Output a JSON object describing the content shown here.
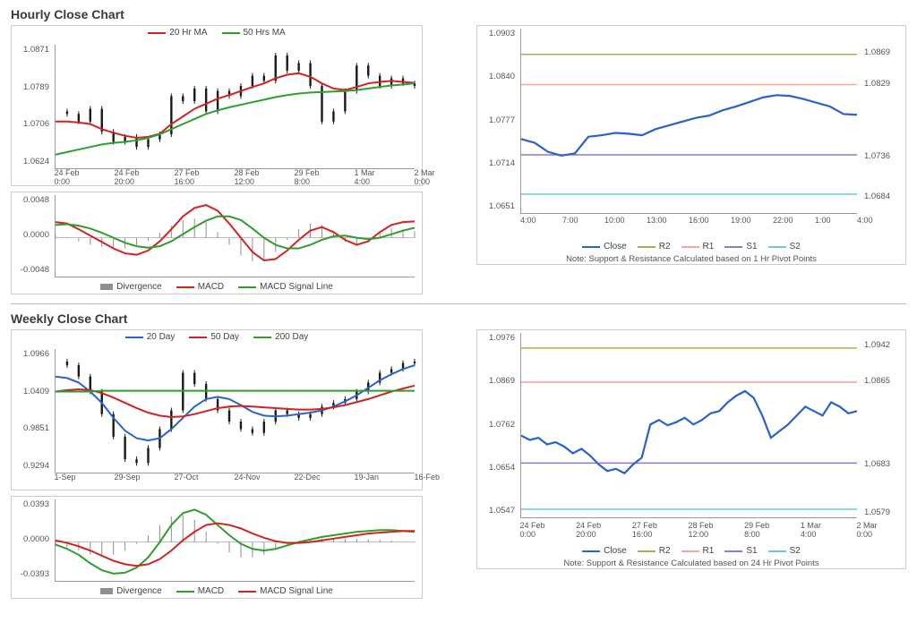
{
  "hourly": {
    "title": "Hourly Close Chart",
    "price": {
      "legend": [
        {
          "label": "20 Hr MA",
          "color": "#d22323"
        },
        {
          "label": "50 Hrs MA",
          "color": "#2f9e2f"
        }
      ],
      "yticks": [
        "1.0871",
        "1.0789",
        "1.0706",
        "1.0624"
      ],
      "ylim": [
        1.0624,
        1.0871
      ],
      "xticks": [
        "24 Feb\n0:00",
        "24 Feb\n20:00",
        "27 Feb\n16:00",
        "28 Feb\n12:00",
        "29 Feb\n8:00",
        "1 Mar\n4:00",
        "2 Mar\n0:00"
      ],
      "close_series": [
        1.074,
        1.0735,
        1.072,
        1.0745,
        1.07,
        1.068,
        1.069,
        1.067,
        1.0685,
        1.0695,
        1.077,
        1.076,
        1.0785,
        1.074,
        1.078,
        1.077,
        1.079,
        1.081,
        1.08,
        1.085,
        1.082,
        1.0835,
        1.079,
        1.072,
        1.074,
        1.078,
        1.083,
        1.081,
        1.079,
        1.0805,
        1.0795,
        1.079
      ],
      "ma20": [
        1.072,
        1.072,
        1.0718,
        1.0715,
        1.0705,
        1.0698,
        1.0692,
        1.0688,
        1.069,
        1.0696,
        1.0715,
        1.073,
        1.0745,
        1.0755,
        1.0765,
        1.0772,
        1.078,
        1.0788,
        1.0795,
        1.0805,
        1.0812,
        1.0815,
        1.0808,
        1.0795,
        1.0785,
        1.0782,
        1.0788,
        1.0795,
        1.0798,
        1.08,
        1.0798,
        1.0796
      ],
      "ma50": [
        1.0655,
        1.066,
        1.0665,
        1.067,
        1.0675,
        1.0678,
        1.068,
        1.0683,
        1.0688,
        1.0695,
        1.0705,
        1.0715,
        1.0725,
        1.0735,
        1.0742,
        1.0748,
        1.0753,
        1.0758,
        1.0763,
        1.0768,
        1.0772,
        1.0775,
        1.0777,
        1.0778,
        1.0779,
        1.078,
        1.0782,
        1.0785,
        1.0788,
        1.0791,
        1.0793,
        1.0795
      ],
      "ma20_color": "#d22323",
      "ma50_color": "#2f9e2f",
      "bar_color": "#1a1a1a"
    },
    "macd": {
      "legend": [
        {
          "label": "Divergence",
          "color": "#8f8f8f",
          "type": "bar"
        },
        {
          "label": "MACD",
          "color": "#d22323",
          "type": "line"
        },
        {
          "label": "MACD Signal Line",
          "color": "#2f9e2f",
          "type": "line"
        }
      ],
      "yticks": [
        "0.0048",
        "0.0000",
        "-0.0048"
      ],
      "ylim": [
        -0.006,
        0.006
      ],
      "macd_series": [
        0.0022,
        0.002,
        0.0012,
        0.0003,
        -0.0006,
        -0.0015,
        -0.0022,
        -0.0024,
        -0.0018,
        -0.0005,
        0.0012,
        0.003,
        0.0042,
        0.0046,
        0.0038,
        0.002,
        0.0,
        -0.002,
        -0.0032,
        -0.003,
        -0.0018,
        -0.0003,
        0.001,
        0.0015,
        0.0008,
        -0.0003,
        -0.001,
        -0.0005,
        0.0008,
        0.0018,
        0.0022,
        0.0023
      ],
      "signal_series": [
        0.0018,
        0.0019,
        0.0017,
        0.0013,
        0.0007,
        0.0,
        -0.0007,
        -0.0012,
        -0.0014,
        -0.0012,
        -0.0005,
        0.0005,
        0.0015,
        0.0024,
        0.003,
        0.003,
        0.0025,
        0.0013,
        0.0,
        -0.001,
        -0.0015,
        -0.0015,
        -0.001,
        -0.0003,
        0.0002,
        0.0003,
        0.0,
        -0.0002,
        0.0,
        0.0005,
        0.001,
        0.0014
      ],
      "div_series": [
        0.0004,
        0.0001,
        -0.0005,
        -0.001,
        -0.0013,
        -0.0015,
        -0.0015,
        -0.0012,
        -0.0004,
        0.0007,
        0.0017,
        0.0025,
        0.0027,
        0.0022,
        0.0008,
        -0.001,
        -0.0025,
        -0.0033,
        -0.0032,
        -0.002,
        -0.0003,
        0.0012,
        0.002,
        0.0018,
        0.0006,
        -0.0006,
        -0.001,
        -0.0003,
        0.0008,
        0.0013,
        0.0012,
        0.0009
      ],
      "macd_color": "#d22323",
      "signal_color": "#2f9e2f",
      "div_color": "#8f8f8f"
    },
    "pivot": {
      "yticks": [
        "1.0903",
        "1.0840",
        "1.0777",
        "1.0714",
        "1.0651"
      ],
      "ylim": [
        1.0651,
        1.0903
      ],
      "xticks": [
        "4:00",
        "7:00",
        "10:00",
        "13:00",
        "16:00",
        "19:00",
        "22:00",
        "1:00",
        "4:00"
      ],
      "close_series": [
        1.0757,
        1.0752,
        1.074,
        1.0735,
        1.0738,
        1.076,
        1.0762,
        1.0765,
        1.0764,
        1.0762,
        1.077,
        1.0775,
        1.078,
        1.0785,
        1.0788,
        1.0795,
        1.08,
        1.0806,
        1.0812,
        1.0815,
        1.0814,
        1.081,
        1.0805,
        1.08,
        1.079,
        1.0789
      ],
      "close_color": "#2a63c9",
      "levels": [
        {
          "name": "R2",
          "value": 1.0869,
          "color": "#98b84a"
        },
        {
          "name": "R1",
          "value": 1.0829,
          "color": "#f4a7a2"
        },
        {
          "name": "S1",
          "value": 1.0736,
          "color": "#9477c7"
        },
        {
          "name": "S2",
          "value": 1.0684,
          "color": "#67c9e0"
        }
      ],
      "legend": [
        {
          "label": "Close",
          "color": "#2a63c9"
        },
        {
          "label": "R2",
          "color": "#98b84a"
        },
        {
          "label": "R1",
          "color": "#f4a7a2"
        },
        {
          "label": "S1",
          "color": "#9477c7"
        },
        {
          "label": "S2",
          "color": "#67c9e0"
        }
      ],
      "note": "Note: Support & Resistance Calculated based on 1 Hr Pivot Points"
    }
  },
  "weekly": {
    "title": "Weekly Close Chart",
    "price": {
      "legend": [
        {
          "label": "20 Day",
          "color": "#2a63c9"
        },
        {
          "label": "50 Day",
          "color": "#d22323"
        },
        {
          "label": "200 Day",
          "color": "#2f9e2f"
        }
      ],
      "yticks": [
        "1.0966",
        "1.0409",
        "0.9851",
        "0.9294"
      ],
      "ylim": [
        0.9294,
        1.0966
      ],
      "xticks": [
        "1-Sep",
        "29-Sep",
        "27-Oct",
        "24-Nov",
        "22-Dec",
        "19-Jan",
        "16-Feb"
      ],
      "close_series": [
        1.08,
        1.075,
        1.06,
        1.04,
        1.01,
        0.98,
        0.95,
        0.945,
        0.965,
        0.99,
        1.015,
        1.065,
        1.05,
        1.03,
        1.015,
        1.0,
        0.99,
        0.985,
        1.0,
        1.015,
        1.01,
        1.005,
        1.01,
        1.02,
        1.025,
        1.03,
        1.04,
        1.052,
        1.065,
        1.07,
        1.078,
        1.08
      ],
      "ma20": [
        1.06,
        1.058,
        1.052,
        1.04,
        1.025,
        1.005,
        0.988,
        0.978,
        0.975,
        0.978,
        0.99,
        1.005,
        1.02,
        1.03,
        1.033,
        1.03,
        1.022,
        1.013,
        1.008,
        1.007,
        1.008,
        1.01,
        1.012,
        1.015,
        1.02,
        1.027,
        1.035,
        1.045,
        1.055,
        1.063,
        1.07,
        1.075
      ],
      "ma50": [
        1.04,
        1.042,
        1.043,
        1.042,
        1.038,
        1.032,
        1.025,
        1.018,
        1.012,
        1.008,
        1.006,
        1.007,
        1.01,
        1.014,
        1.018,
        1.02,
        1.021,
        1.02,
        1.019,
        1.018,
        1.017,
        1.016,
        1.016,
        1.017,
        1.019,
        1.022,
        1.026,
        1.03,
        1.035,
        1.04,
        1.044,
        1.048
      ],
      "ma200": [
        1.04,
        1.04,
        1.04,
        1.04,
        1.041,
        1.041,
        1.041,
        1.041,
        1.041,
        1.041,
        1.041,
        1.041,
        1.041,
        1.041,
        1.041,
        1.041,
        1.041,
        1.041,
        1.041,
        1.041,
        1.041,
        1.041,
        1.041,
        1.041,
        1.041,
        1.041,
        1.041,
        1.041,
        1.041,
        1.041,
        1.041,
        1.041
      ],
      "ma20_color": "#2a63c9",
      "ma50_color": "#d22323",
      "ma200_color": "#2f9e2f",
      "bar_color": "#1a1a1a"
    },
    "macd": {
      "legend": [
        {
          "label": "Divergence",
          "color": "#8f8f8f",
          "type": "bar"
        },
        {
          "label": "MACD",
          "color": "#2f9e2f",
          "type": "line"
        },
        {
          "label": "MACD Signal Line",
          "color": "#d22323",
          "type": "line"
        }
      ],
      "yticks": [
        "0.0393",
        "0.0000",
        "-0.0393"
      ],
      "ylim": [
        -0.05,
        0.05
      ],
      "macd_series": [
        -0.003,
        -0.008,
        -0.015,
        -0.025,
        -0.033,
        -0.037,
        -0.036,
        -0.03,
        -0.018,
        0.0,
        0.02,
        0.034,
        0.038,
        0.032,
        0.02,
        0.008,
        -0.002,
        -0.008,
        -0.01,
        -0.008,
        -0.004,
        0.0,
        0.003,
        0.006,
        0.008,
        0.01,
        0.012,
        0.013,
        0.014,
        0.014,
        0.013,
        0.012
      ],
      "signal_series": [
        0.002,
        -0.001,
        -0.005,
        -0.01,
        -0.016,
        -0.022,
        -0.026,
        -0.028,
        -0.026,
        -0.02,
        -0.01,
        0.002,
        0.012,
        0.02,
        0.022,
        0.02,
        0.016,
        0.01,
        0.005,
        0.001,
        -0.001,
        -0.001,
        0.0,
        0.002,
        0.004,
        0.006,
        0.008,
        0.01,
        0.011,
        0.012,
        0.013,
        0.013
      ],
      "div_series": [
        -0.005,
        -0.007,
        -0.01,
        -0.015,
        -0.017,
        -0.015,
        -0.01,
        -0.002,
        0.008,
        0.02,
        0.03,
        0.032,
        0.026,
        0.012,
        -0.002,
        -0.012,
        -0.018,
        -0.018,
        -0.015,
        -0.009,
        -0.003,
        0.001,
        0.003,
        0.004,
        0.004,
        0.004,
        0.004,
        0.003,
        0.003,
        0.002,
        0.0,
        -0.001
      ],
      "macd_color": "#2f9e2f",
      "signal_color": "#d22323",
      "div_color": "#8f8f8f"
    },
    "pivot": {
      "yticks": [
        "1.0976",
        "1.0869",
        "1.0762",
        "1.0654",
        "1.0547"
      ],
      "ylim": [
        1.0547,
        1.0976
      ],
      "xticks": [
        "24 Feb\n0:00",
        "24 Feb\n20:00",
        "27 Feb\n16:00",
        "28 Feb\n12:00",
        "29 Feb\n8:00",
        "1 Mar\n4:00",
        "2 Mar\n0:00"
      ],
      "close_series": [
        1.0745,
        1.0735,
        1.074,
        1.0725,
        1.073,
        1.072,
        1.0705,
        1.0715,
        1.07,
        1.068,
        1.0665,
        1.067,
        1.066,
        1.068,
        1.0695,
        1.077,
        1.078,
        1.0768,
        1.0775,
        1.0785,
        1.077,
        1.078,
        1.0795,
        1.08,
        1.082,
        1.0835,
        1.0845,
        1.083,
        1.079,
        1.074,
        1.0755,
        1.077,
        1.079,
        1.081,
        1.08,
        1.079,
        1.082,
        1.081,
        1.0795,
        1.08
      ],
      "close_color": "#2a63c9",
      "levels": [
        {
          "name": "R2",
          "value": 1.0942,
          "color": "#98b84a"
        },
        {
          "name": "R1",
          "value": 1.0865,
          "color": "#f4a7a2"
        },
        {
          "name": "S1",
          "value": 1.0683,
          "color": "#9477c7"
        },
        {
          "name": "S2",
          "value": 1.0579,
          "color": "#67c9e0"
        }
      ],
      "legend": [
        {
          "label": "Close",
          "color": "#2a63c9"
        },
        {
          "label": "R2",
          "color": "#98b84a"
        },
        {
          "label": "R1",
          "color": "#f4a7a2"
        },
        {
          "label": "S1",
          "color": "#9477c7"
        },
        {
          "label": "S2",
          "color": "#67c9e0"
        }
      ],
      "note": "Note: Support & Resistance Calculated based on 24 Hr Pivot Points"
    }
  }
}
